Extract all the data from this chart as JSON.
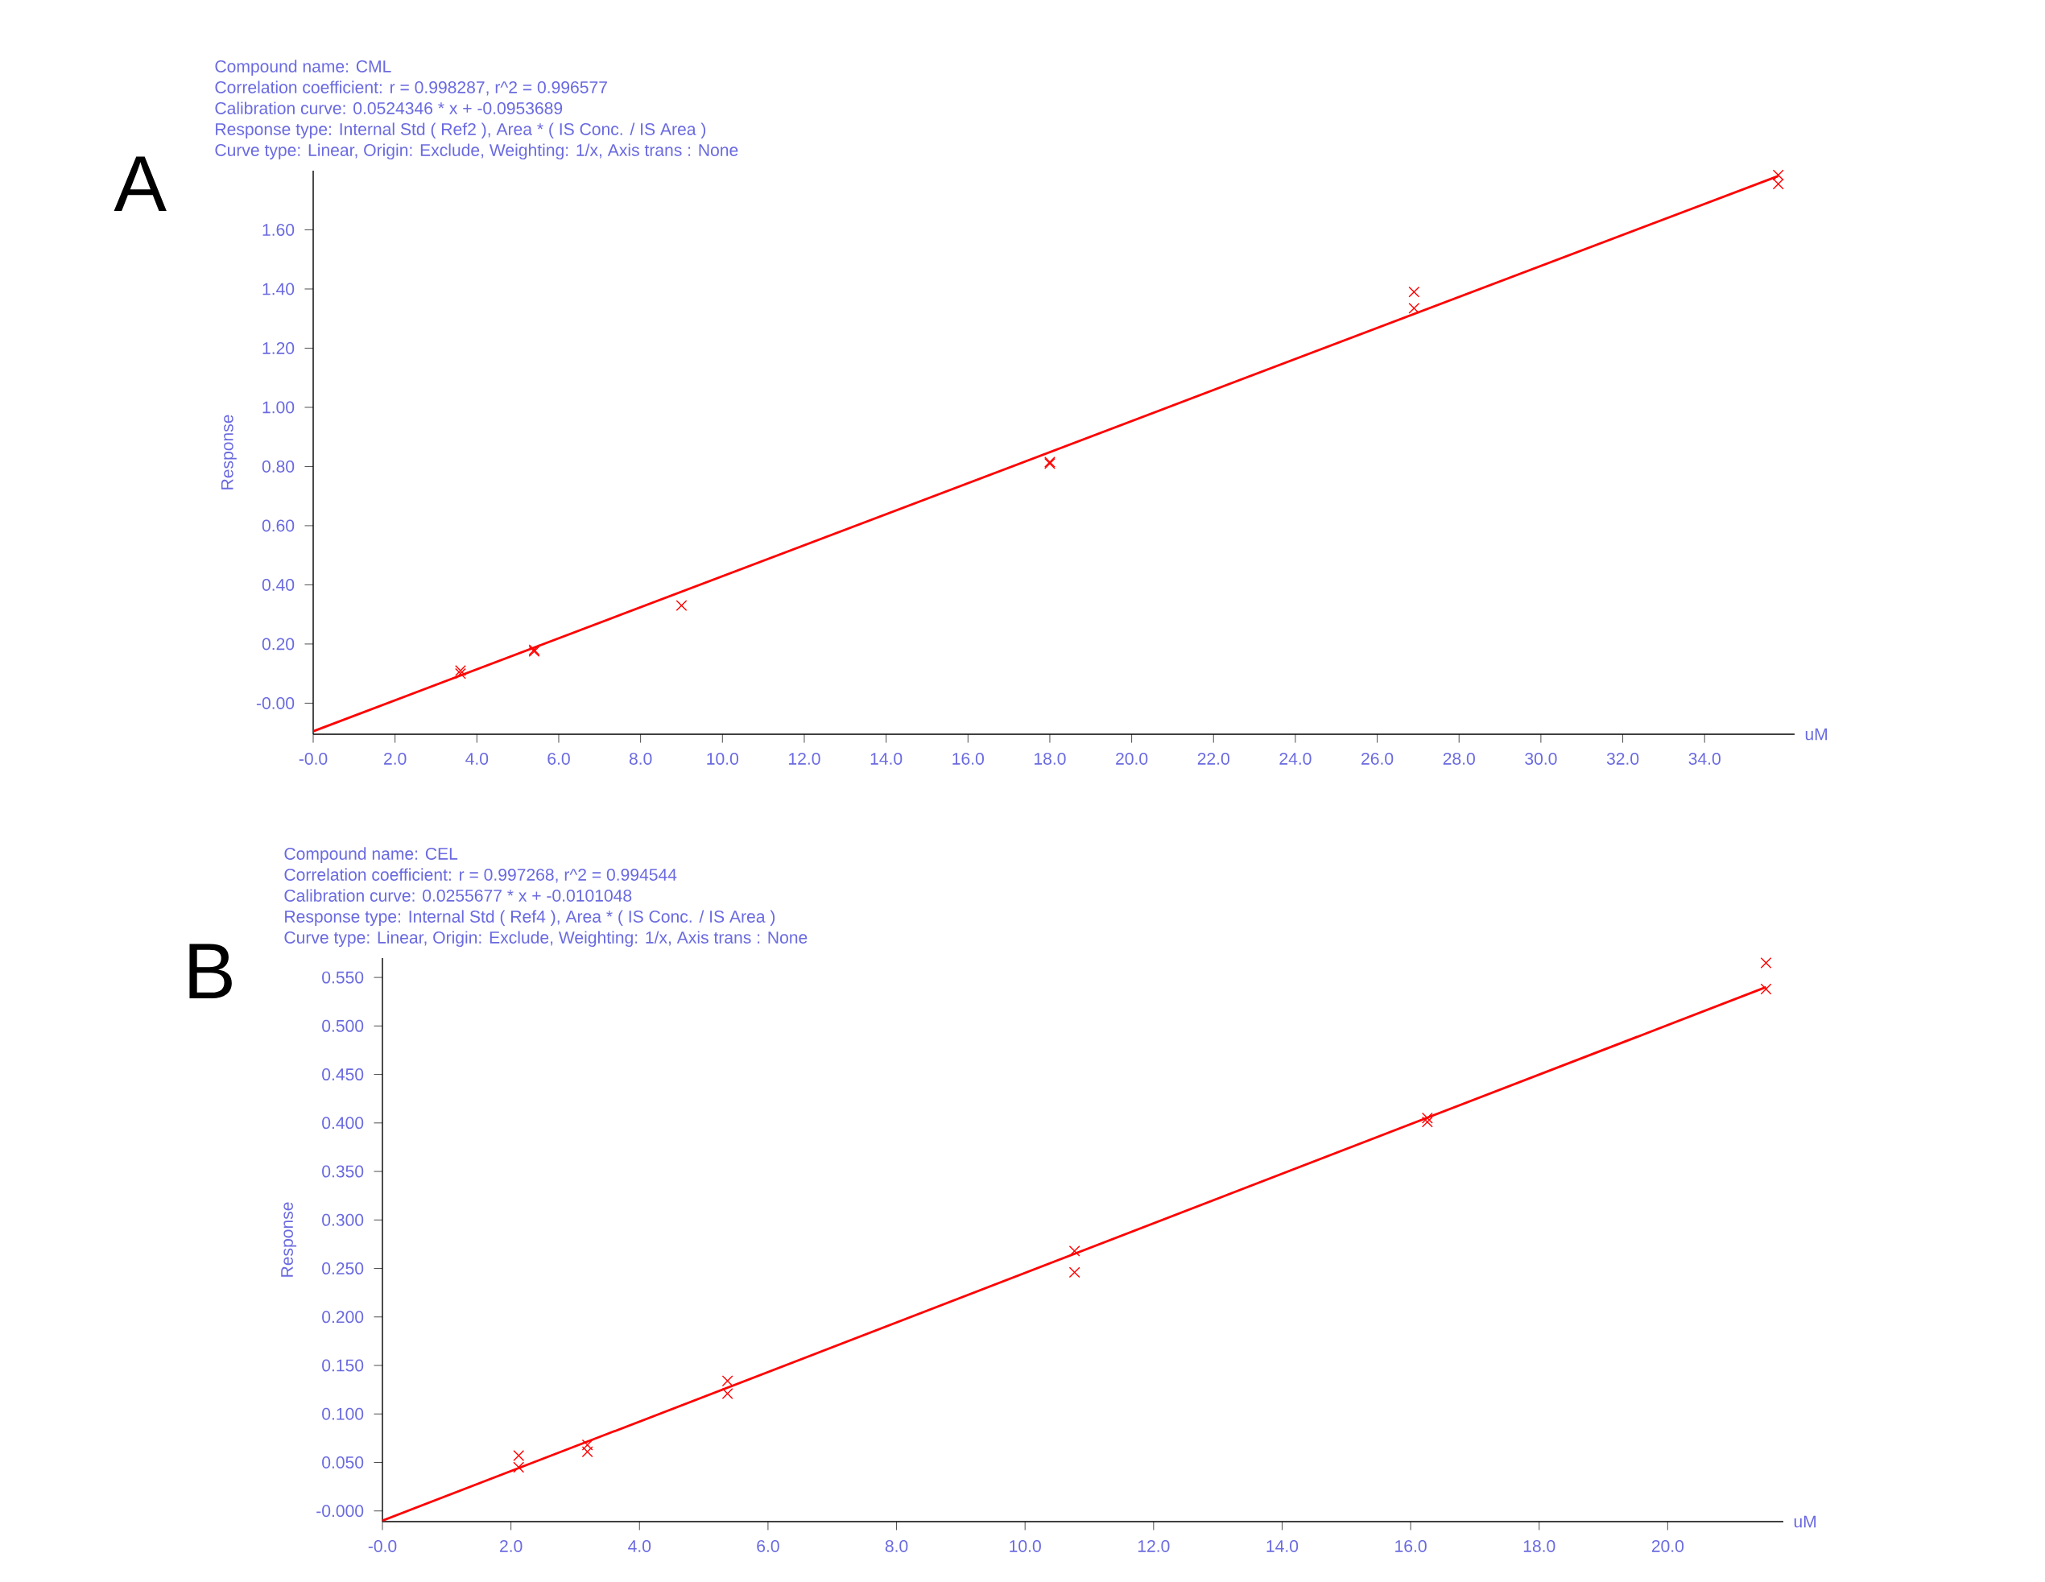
{
  "chart_data": [
    {
      "type": "scatter",
      "title": "A",
      "xlabel": "uM",
      "ylabel": "Response",
      "annotations": [
        "Compound name: CML",
        "Correlation coefficient: r = 0.998287, r^2 = 0.996577",
        "Calibration curve: 0.0524346 * x + -0.0953689",
        "Response type: Internal Std ( Ref2 ), Area * ( IS Conc. / IS Area )",
        "Curve type: Linear, Origin: Exclude, Weighting: 1/x, Axis trans : None"
      ],
      "xlim": [
        0,
        36.2
      ],
      "ylim": [
        -0.105,
        1.8
      ],
      "xticks": [
        {
          "value": 0,
          "label": "-0.0"
        },
        {
          "value": 2,
          "label": "2.0"
        },
        {
          "value": 4,
          "label": "4.0"
        },
        {
          "value": 6,
          "label": "6.0"
        },
        {
          "value": 8,
          "label": "8.0"
        },
        {
          "value": 10,
          "label": "10.0"
        },
        {
          "value": 12,
          "label": "12.0"
        },
        {
          "value": 14,
          "label": "14.0"
        },
        {
          "value": 16,
          "label": "16.0"
        },
        {
          "value": 18,
          "label": "18.0"
        },
        {
          "value": 20,
          "label": "20.0"
        },
        {
          "value": 22,
          "label": "22.0"
        },
        {
          "value": 24,
          "label": "24.0"
        },
        {
          "value": 26,
          "label": "26.0"
        },
        {
          "value": 28,
          "label": "28.0"
        },
        {
          "value": 30,
          "label": "30.0"
        },
        {
          "value": 32,
          "label": "32.0"
        },
        {
          "value": 34,
          "label": "34.0"
        }
      ],
      "yticks": [
        {
          "value": 0,
          "label": "-0.00"
        },
        {
          "value": 0.2,
          "label": "0.20"
        },
        {
          "value": 0.4,
          "label": "0.40"
        },
        {
          "value": 0.6,
          "label": "0.60"
        },
        {
          "value": 0.8,
          "label": "0.80"
        },
        {
          "value": 1.0,
          "label": "1.00"
        },
        {
          "value": 1.2,
          "label": "1.20"
        },
        {
          "value": 1.4,
          "label": "1.40"
        },
        {
          "value": 1.6,
          "label": "1.60"
        }
      ],
      "series": [
        {
          "type": "scatter",
          "marker": "cross",
          "color": "#ff0000",
          "x": [
            3.6,
            3.6,
            5.4,
            5.4,
            9.0,
            18.0,
            18.0,
            26.9,
            26.9,
            35.8,
            35.8
          ],
          "values": [
            0.11,
            0.1,
            0.18,
            0.175,
            0.33,
            0.81,
            0.815,
            1.39,
            1.335,
            1.785,
            1.755
          ]
        },
        {
          "type": "line",
          "marker": "none",
          "line_style": "solid",
          "color": "#ff0000",
          "x": [
            0,
            35.8
          ],
          "values": [
            -0.095,
            1.782
          ]
        }
      ]
    },
    {
      "type": "scatter",
      "title": "B",
      "xlabel": "uM",
      "ylabel": "Response",
      "annotations": [
        "Compound name: CEL",
        "Correlation coefficient: r = 0.997268, r^2 = 0.994544",
        "Calibration curve: 0.0255677 * x + -0.0101048",
        "Response type: Internal Std ( Ref4 ), Area * ( IS Conc. / IS Area )",
        "Curve type: Linear, Origin: Exclude, Weighting: 1/x, Axis trans : None"
      ],
      "xlim": [
        0,
        21.8
      ],
      "ylim": [
        -0.011,
        0.57
      ],
      "xticks": [
        {
          "value": 0,
          "label": "-0.0"
        },
        {
          "value": 2,
          "label": "2.0"
        },
        {
          "value": 4,
          "label": "4.0"
        },
        {
          "value": 6,
          "label": "6.0"
        },
        {
          "value": 8,
          "label": "8.0"
        },
        {
          "value": 10,
          "label": "10.0"
        },
        {
          "value": 12,
          "label": "12.0"
        },
        {
          "value": 14,
          "label": "14.0"
        },
        {
          "value": 16,
          "label": "16.0"
        },
        {
          "value": 18,
          "label": "18.0"
        },
        {
          "value": 20,
          "label": "20.0"
        }
      ],
      "yticks": [
        {
          "value": 0,
          "label": "-0.000"
        },
        {
          "value": 0.05,
          "label": "0.050"
        },
        {
          "value": 0.1,
          "label": "0.100"
        },
        {
          "value": 0.15,
          "label": "0.150"
        },
        {
          "value": 0.2,
          "label": "0.200"
        },
        {
          "value": 0.25,
          "label": "0.250"
        },
        {
          "value": 0.3,
          "label": "0.300"
        },
        {
          "value": 0.35,
          "label": "0.350"
        },
        {
          "value": 0.4,
          "label": "0.400"
        },
        {
          "value": 0.45,
          "label": "0.450"
        },
        {
          "value": 0.5,
          "label": "0.500"
        },
        {
          "value": 0.55,
          "label": "0.550"
        }
      ],
      "series": [
        {
          "type": "scatter",
          "marker": "cross",
          "color": "#ff0000",
          "x": [
            2.12,
            2.12,
            3.19,
            3.19,
            5.37,
            5.37,
            10.77,
            10.77,
            16.26,
            16.26,
            21.53,
            21.53
          ],
          "values": [
            0.057,
            0.045,
            0.068,
            0.061,
            0.134,
            0.121,
            0.268,
            0.246,
            0.405,
            0.401,
            0.565,
            0.538
          ]
        },
        {
          "type": "line",
          "marker": "none",
          "line_style": "solid",
          "color": "#ff0000",
          "x": [
            0,
            21.53
          ],
          "values": [
            -0.01,
            0.54
          ]
        }
      ]
    }
  ]
}
